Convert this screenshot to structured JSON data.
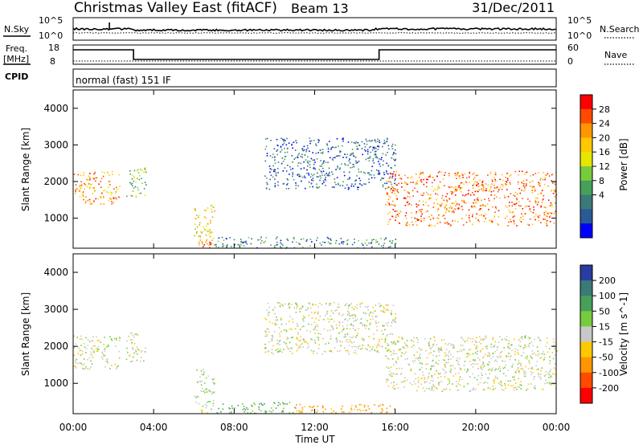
{
  "header": {
    "station": "Christmas Valley East (fitACF)",
    "beam": "Beam 13",
    "date": "31/Dec/2011"
  },
  "noise_panel": {
    "left_label": "N.Sky",
    "right_label": "N.Search",
    "left_ticks": [
      "10^5",
      "10^0"
    ],
    "right_ticks": [
      "10^5",
      "10^0"
    ]
  },
  "freq_panel": {
    "left_label_1": "Freq.",
    "left_label_2": "[MHz]",
    "right_label": "Nave",
    "left_ticks": [
      "18",
      "8"
    ],
    "right_ticks": [
      "60",
      "0"
    ]
  },
  "cpid": {
    "label": "CPID",
    "mode": "normal (fast) 151 IF"
  },
  "power_colorbar": {
    "title": "Power [dB]",
    "ticks": [
      "28",
      "24",
      "20",
      "16",
      "12",
      "8",
      "4"
    ],
    "colors": [
      "#ff0000",
      "#ff4a00",
      "#ff9600",
      "#ffc800",
      "#e6e600",
      "#78cc3c",
      "#46a05a",
      "#3c7a78",
      "#2a5a96",
      "#0000ff"
    ]
  },
  "velocity_colorbar": {
    "title": "Velocity [m s^-1]",
    "ticks": [
      "200",
      "100",
      "50",
      "15",
      "-15",
      "-50",
      "-100",
      "-200"
    ],
    "colors": [
      "#2a3ca0",
      "#3c7a78",
      "#46a05a",
      "#78cc3c",
      "#c8c8c8",
      "#ffc800",
      "#ff9600",
      "#ff4a00",
      "#ff0000"
    ]
  },
  "chart_data": [
    {
      "type": "heatmap",
      "title": "",
      "xlabel": "Time UT",
      "ylabel": "Slant Range [km]",
      "xticks": [
        "00:00",
        "04:00",
        "08:00",
        "12:00",
        "16:00",
        "20:00",
        "00:00"
      ],
      "yticks": [
        "1000",
        "2000",
        "3000",
        "4000"
      ],
      "ylim": [
        180,
        4500
      ],
      "variable": "Power [dB]",
      "zlim": [
        0,
        30
      ],
      "regions": [
        {
          "t": [
            0.0,
            2.3
          ],
          "r": [
            1400,
            2300
          ],
          "p": 22
        },
        {
          "t": [
            2.6,
            3.6
          ],
          "r": [
            1600,
            2400
          ],
          "p": 12
        },
        {
          "t": [
            6.0,
            7.0
          ],
          "r": [
            250,
            1400
          ],
          "p": 18
        },
        {
          "t": [
            6.2,
            7.0
          ],
          "r": [
            200,
            400
          ],
          "p": 28
        },
        {
          "t": [
            7.0,
            16.0
          ],
          "r": [
            200,
            500
          ],
          "p": 8
        },
        {
          "t": [
            9.5,
            16.0
          ],
          "r": [
            1800,
            3200
          ],
          "p": 6
        },
        {
          "t": [
            15.5,
            24.0
          ],
          "r": [
            800,
            2300
          ],
          "p": 24
        }
      ]
    },
    {
      "type": "heatmap",
      "title": "",
      "xlabel": "Time UT",
      "ylabel": "Slant Range [km]",
      "xticks": [
        "00:00",
        "04:00",
        "08:00",
        "12:00",
        "16:00",
        "20:00",
        "00:00"
      ],
      "yticks": [
        "1000",
        "2000",
        "3000",
        "4000"
      ],
      "ylim": [
        180,
        4500
      ],
      "variable": "Velocity [m s^-1]",
      "zlim": [
        -200,
        200
      ],
      "regions": [
        {
          "t": [
            0.0,
            2.3
          ],
          "r": [
            1400,
            2300
          ],
          "v": 0
        },
        {
          "t": [
            2.6,
            3.6
          ],
          "r": [
            1600,
            2400
          ],
          "v": 0
        },
        {
          "t": [
            6.0,
            7.0
          ],
          "r": [
            500,
            1400
          ],
          "v": 20
        },
        {
          "t": [
            6.2,
            7.0
          ],
          "r": [
            200,
            500
          ],
          "v": 0
        },
        {
          "t": [
            7.0,
            11.0
          ],
          "r": [
            200,
            500
          ],
          "v": 60
        },
        {
          "t": [
            11.0,
            16.0
          ],
          "r": [
            200,
            450
          ],
          "v": -60
        },
        {
          "t": [
            9.5,
            16.0
          ],
          "r": [
            1800,
            3200
          ],
          "v": 0
        },
        {
          "t": [
            15.5,
            24.0
          ],
          "r": [
            800,
            2300
          ],
          "v": 0
        }
      ]
    }
  ]
}
